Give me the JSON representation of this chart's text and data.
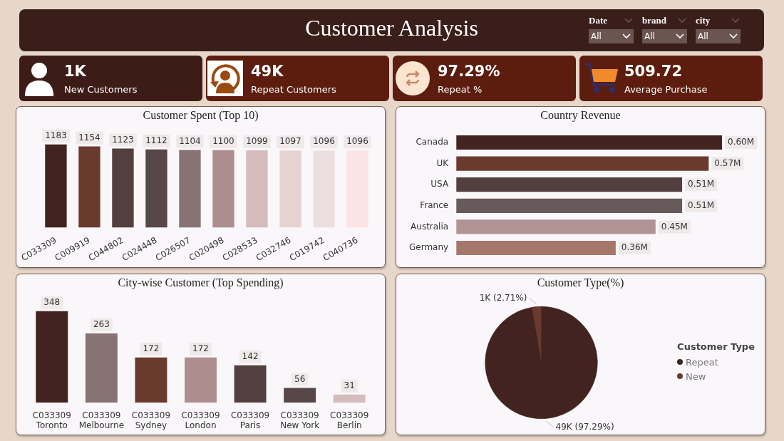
{
  "chart_data": [
    {
      "type": "other",
      "title": "Customer Analysis",
      "annotations": [
        "Date",
        "All",
        "brand",
        "All",
        "city",
        "All"
      ]
    },
    {
      "type": "other",
      "annotations": [
        "1K",
        "New Customers",
        "49K",
        "Repeat Customers",
        "97.29%",
        "Repeat %",
        "509.72",
        "Average Purchase"
      ]
    },
    {
      "type": "bar",
      "title": "Customer Spent (Top 10)",
      "categories": [
        "C033309",
        "C009919",
        "C044802",
        "C024448",
        "C026507",
        "C020498",
        "C028533",
        "C032746",
        "C019742",
        "C040736"
      ],
      "values": [
        1183,
        1154,
        1123,
        1112,
        1104,
        1100,
        1099,
        1097,
        1096,
        1096
      ],
      "colors": [
        "#43231f",
        "#6b3a2e",
        "#533f3e",
        "#584749",
        "#877373",
        "#ad8d8d",
        "#d3bcbb",
        "#e6d3d1",
        "#ecdfdf",
        "#fde4e4"
      ],
      "data_labels": true,
      "tick_labels": "x",
      "grid": false
    },
    {
      "type": "bar",
      "title": "Country Revenue",
      "orientation": "horizontal",
      "categories": [
        "Canada",
        "UK",
        "USA",
        "France",
        "Australia",
        "Germany"
      ],
      "values": [
        0.6,
        0.57,
        0.51,
        0.51,
        0.45,
        0.36
      ],
      "value_labels": [
        "0.60M",
        "0.57M",
        "0.51M",
        "0.51M",
        "0.45M",
        "0.36M"
      ],
      "colors": [
        "#43231f",
        "#6b3a2e",
        "#533f3e",
        "#675a5b",
        "#b09393",
        "#a4776b"
      ],
      "tick_labels": "y",
      "grid": false
    },
    {
      "type": "bar",
      "title": "City-wise Customer (Top Spending)",
      "categories": [
        "C033309\nToronto",
        "C033309\nMelbourne",
        "C033309\nSydney",
        "C033309\nLondon",
        "C033309\nParis",
        "C033309\nNew York",
        "C033309\nBerlin"
      ],
      "values": [
        348,
        263,
        172,
        172,
        142,
        56,
        31
      ],
      "colors": [
        "#43231f",
        "#877373",
        "#6b3a2e",
        "#ad8d8d",
        "#533f3e",
        "#584749",
        "#d3bcbb"
      ],
      "data_labels": true,
      "tick_labels": "x",
      "grid": false
    },
    {
      "type": "pie",
      "title": "Customer Type(%)",
      "categories": [
        "Repeat",
        "New"
      ],
      "values": [
        97.29,
        2.71
      ],
      "colors": [
        "#43231f",
        "#6b3a2e"
      ],
      "value_labels": [
        "49K (97.29%)",
        "1K (2.71%)"
      ],
      "legend": "right",
      "legend_title": "Customer Type"
    }
  ]
}
